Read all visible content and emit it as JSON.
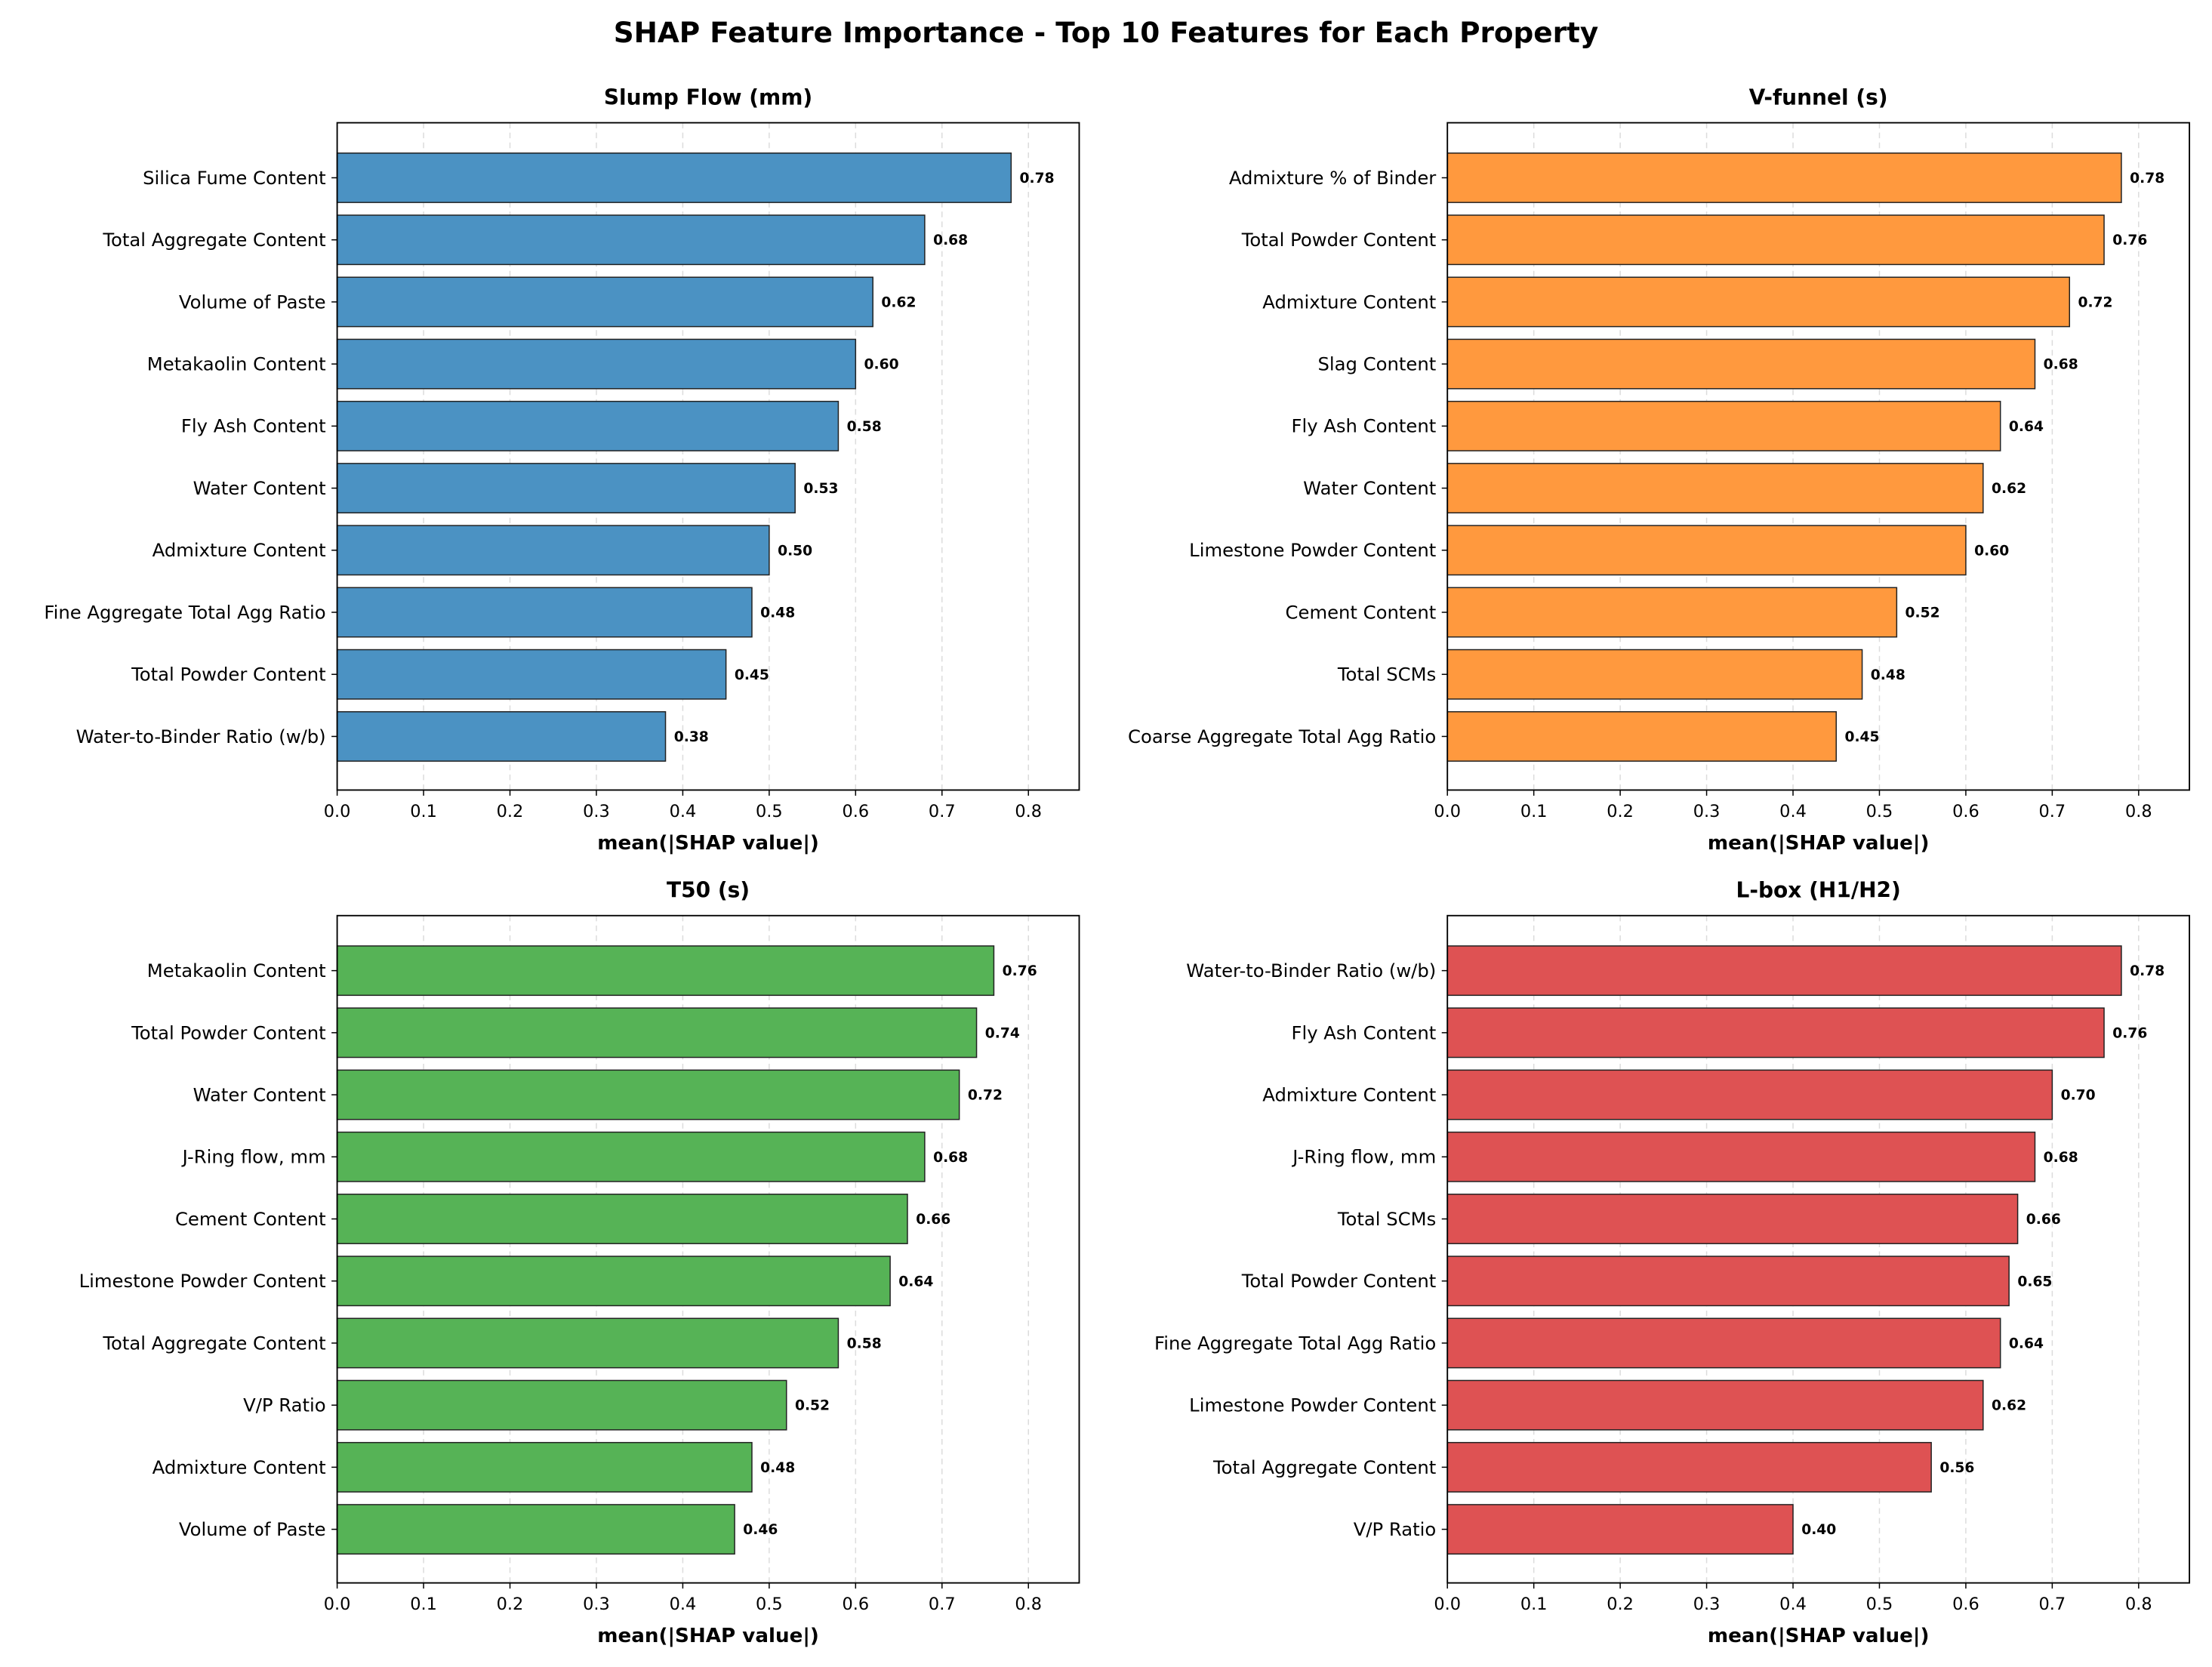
{
  "chart_data": {
    "title": "SHAP Feature Importance - Top 10 Features for Each Property",
    "panels": [
      {
        "type": "bar",
        "orientation": "horizontal",
        "title": "Slump Flow (mm)",
        "xlabel": "mean(|SHAP value|)",
        "color": "#4b92c3",
        "xlim": [
          0,
          0.858
        ],
        "xticks": [
          "0.0",
          "0.1",
          "0.2",
          "0.3",
          "0.4",
          "0.5",
          "0.6",
          "0.7",
          "0.8"
        ],
        "categories": [
          "Silica Fume Content",
          "Total Aggregate Content",
          "Volume of Paste",
          "Metakaolin Content",
          "Fly Ash Content",
          "Water Content",
          "Admixture Content",
          "Fine Aggregate Total Agg Ratio",
          "Total Powder Content",
          "Water-to-Binder Ratio (w/b)"
        ],
        "values": [
          0.78,
          0.68,
          0.62,
          0.6,
          0.58,
          0.53,
          0.5,
          0.48,
          0.45,
          0.38
        ],
        "labels": [
          "0.78",
          "0.68",
          "0.62",
          "0.60",
          "0.58",
          "0.53",
          "0.50",
          "0.48",
          "0.45",
          "0.38"
        ]
      },
      {
        "type": "bar",
        "orientation": "horizontal",
        "title": "V-funnel (s)",
        "xlabel": "mean(|SHAP value|)",
        "color": "#ff993e",
        "xlim": [
          0,
          0.858
        ],
        "xticks": [
          "0.0",
          "0.1",
          "0.2",
          "0.3",
          "0.4",
          "0.5",
          "0.6",
          "0.7",
          "0.8"
        ],
        "categories": [
          "Admixture % of Binder",
          "Total Powder Content",
          "Admixture Content",
          "Slag Content",
          "Fly Ash Content",
          "Water Content",
          "Limestone Powder Content",
          "Cement Content",
          "Total SCMs",
          "Coarse Aggregate Total Agg Ratio"
        ],
        "values": [
          0.78,
          0.76,
          0.72,
          0.68,
          0.64,
          0.62,
          0.6,
          0.52,
          0.48,
          0.45
        ],
        "labels": [
          "0.78",
          "0.76",
          "0.72",
          "0.68",
          "0.64",
          "0.62",
          "0.60",
          "0.52",
          "0.48",
          "0.45"
        ]
      },
      {
        "type": "bar",
        "orientation": "horizontal",
        "title": "T50 (s)",
        "xlabel": "mean(|SHAP value|)",
        "color": "#56b356",
        "xlim": [
          0,
          0.836
        ],
        "xticks": [
          "0.0",
          "0.1",
          "0.2",
          "0.3",
          "0.4",
          "0.5",
          "0.6",
          "0.7",
          "0.8"
        ],
        "categories": [
          "Metakaolin Content",
          "Total Powder Content",
          "Water Content",
          "J-Ring flow, mm",
          "Cement Content",
          "Limestone Powder Content",
          "Total Aggregate Content",
          "V/P Ratio",
          "Admixture Content",
          "Volume of Paste"
        ],
        "values": [
          0.76,
          0.74,
          0.72,
          0.68,
          0.66,
          0.64,
          0.58,
          0.52,
          0.48,
          0.46
        ],
        "labels": [
          "0.76",
          "0.74",
          "0.72",
          "0.68",
          "0.66",
          "0.64",
          "0.58",
          "0.52",
          "0.48",
          "0.46"
        ]
      },
      {
        "type": "bar",
        "orientation": "horizontal",
        "title": "L-box (H1/H2)",
        "xlabel": "mean(|SHAP value|)",
        "color": "#de5253",
        "xlim": [
          0,
          0.858
        ],
        "xticks": [
          "0.0",
          "0.1",
          "0.2",
          "0.3",
          "0.4",
          "0.5",
          "0.6",
          "0.7",
          "0.8"
        ],
        "categories": [
          "Water-to-Binder Ratio (w/b)",
          "Fly Ash Content",
          "Admixture Content",
          "J-Ring flow, mm",
          "Total SCMs",
          "Total Powder Content",
          "Fine Aggregate Total Agg Ratio",
          "Limestone Powder Content",
          "Total Aggregate Content",
          "V/P Ratio"
        ],
        "values": [
          0.78,
          0.76,
          0.7,
          0.68,
          0.66,
          0.65,
          0.64,
          0.62,
          0.56,
          0.4
        ],
        "labels": [
          "0.78",
          "0.76",
          "0.70",
          "0.68",
          "0.66",
          "0.65",
          "0.64",
          "0.62",
          "0.56",
          "0.40"
        ]
      }
    ]
  }
}
